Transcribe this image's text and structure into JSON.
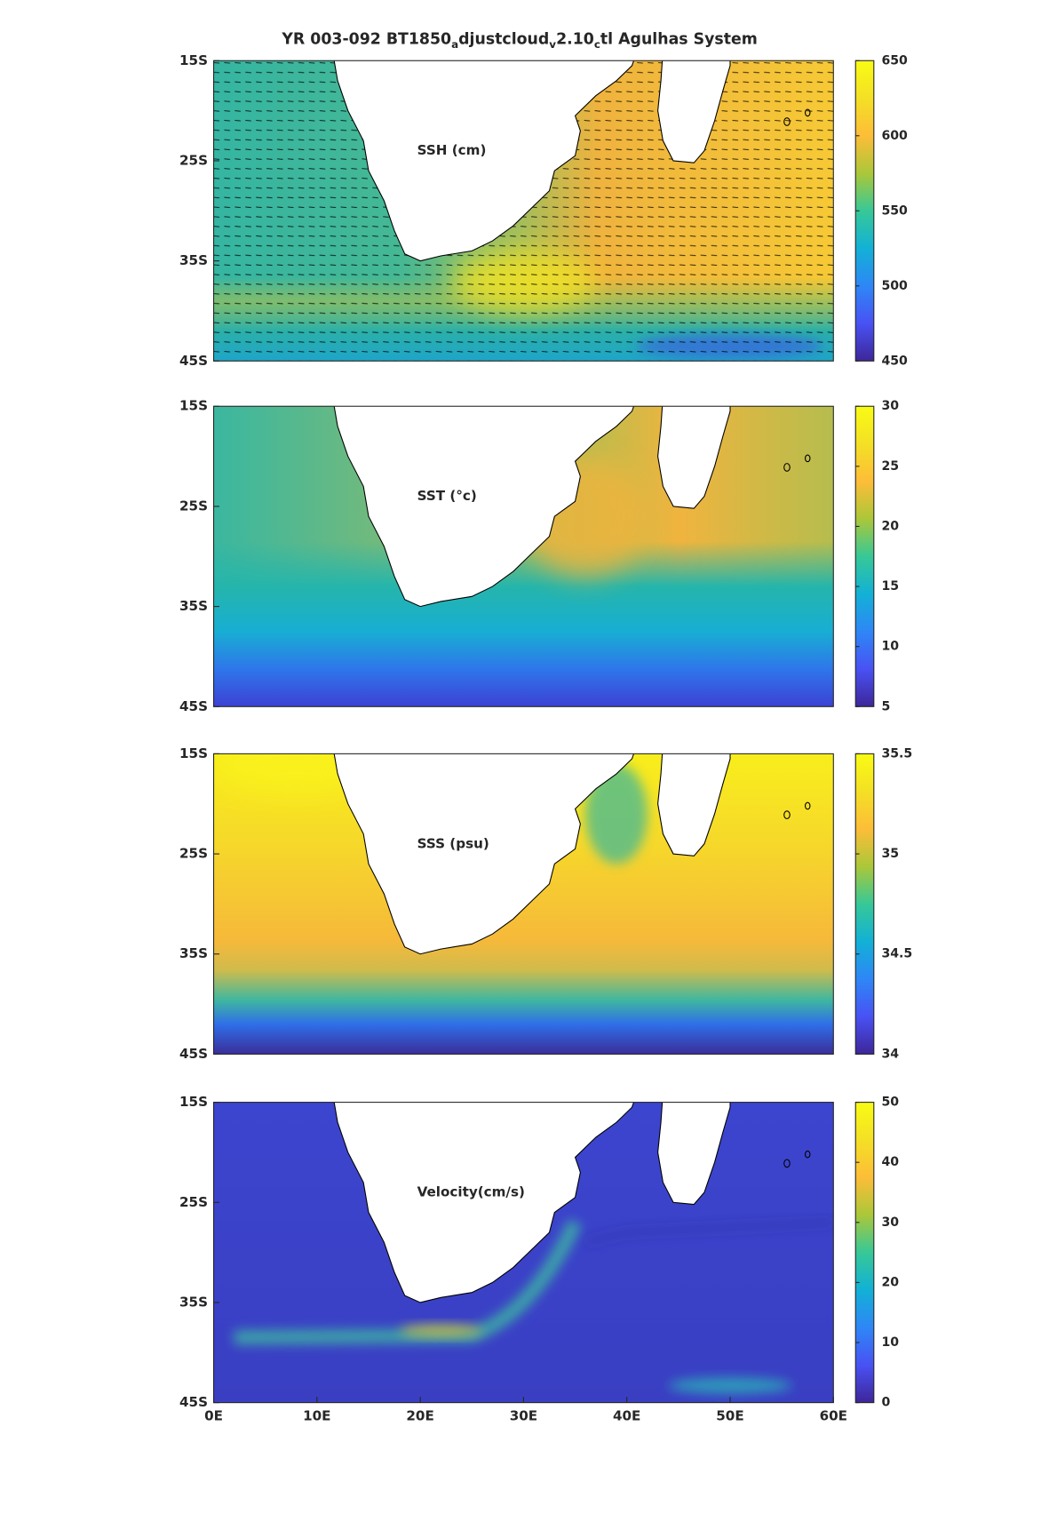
{
  "chart_data": [
    {
      "type": "map",
      "title": [
        "YR 003-092 BT1850",
        "a",
        "djustcloud",
        "v",
        "2.10",
        "c",
        "tl Agulhas System"
      ],
      "label": "SSH (cm)",
      "xlim": [
        0,
        60
      ],
      "ylim": [
        -45,
        -15
      ],
      "yticks": [
        {
          "value": -15,
          "label": "15S"
        },
        {
          "value": -25,
          "label": "25S"
        },
        {
          "value": -35,
          "label": "35S"
        },
        {
          "value": -45,
          "label": "45S"
        }
      ],
      "clim": [
        450,
        650
      ],
      "cticks": [
        450,
        500,
        550,
        600,
        650
      ]
    },
    {
      "type": "map",
      "label": "SST (°c)",
      "xlim": [
        0,
        60
      ],
      "ylim": [
        -45,
        -15
      ],
      "yticks": [
        {
          "value": -15,
          "label": "15S"
        },
        {
          "value": -25,
          "label": "25S"
        },
        {
          "value": -35,
          "label": "35S"
        },
        {
          "value": -45,
          "label": "45S"
        }
      ],
      "clim": [
        5,
        30
      ],
      "cticks": [
        5,
        10,
        15,
        20,
        25,
        30
      ]
    },
    {
      "type": "map",
      "label": "SSS (psu)",
      "xlim": [
        0,
        60
      ],
      "ylim": [
        -45,
        -15
      ],
      "yticks": [
        {
          "value": -15,
          "label": "15S"
        },
        {
          "value": -25,
          "label": "25S"
        },
        {
          "value": -35,
          "label": "35S"
        },
        {
          "value": -45,
          "label": "45S"
        }
      ],
      "clim": [
        34,
        35.5
      ],
      "cticks": [
        34,
        34.5,
        35,
        35.5
      ]
    },
    {
      "type": "map",
      "label": "Velocity(cm/s)",
      "xlim": [
        0,
        60
      ],
      "ylim": [
        -45,
        -15
      ],
      "xticks": [
        {
          "value": 0,
          "label": "0E"
        },
        {
          "value": 10,
          "label": "10E"
        },
        {
          "value": 20,
          "label": "20E"
        },
        {
          "value": 30,
          "label": "30E"
        },
        {
          "value": 40,
          "label": "40E"
        },
        {
          "value": 50,
          "label": "50E"
        },
        {
          "value": 60,
          "label": "60E"
        }
      ],
      "yticks": [
        {
          "value": -15,
          "label": "15S"
        },
        {
          "value": -25,
          "label": "25S"
        },
        {
          "value": -35,
          "label": "35S"
        },
        {
          "value": -45,
          "label": "45S"
        }
      ],
      "clim": [
        0,
        50
      ],
      "cticks": [
        0,
        10,
        20,
        30,
        40,
        50
      ]
    }
  ]
}
